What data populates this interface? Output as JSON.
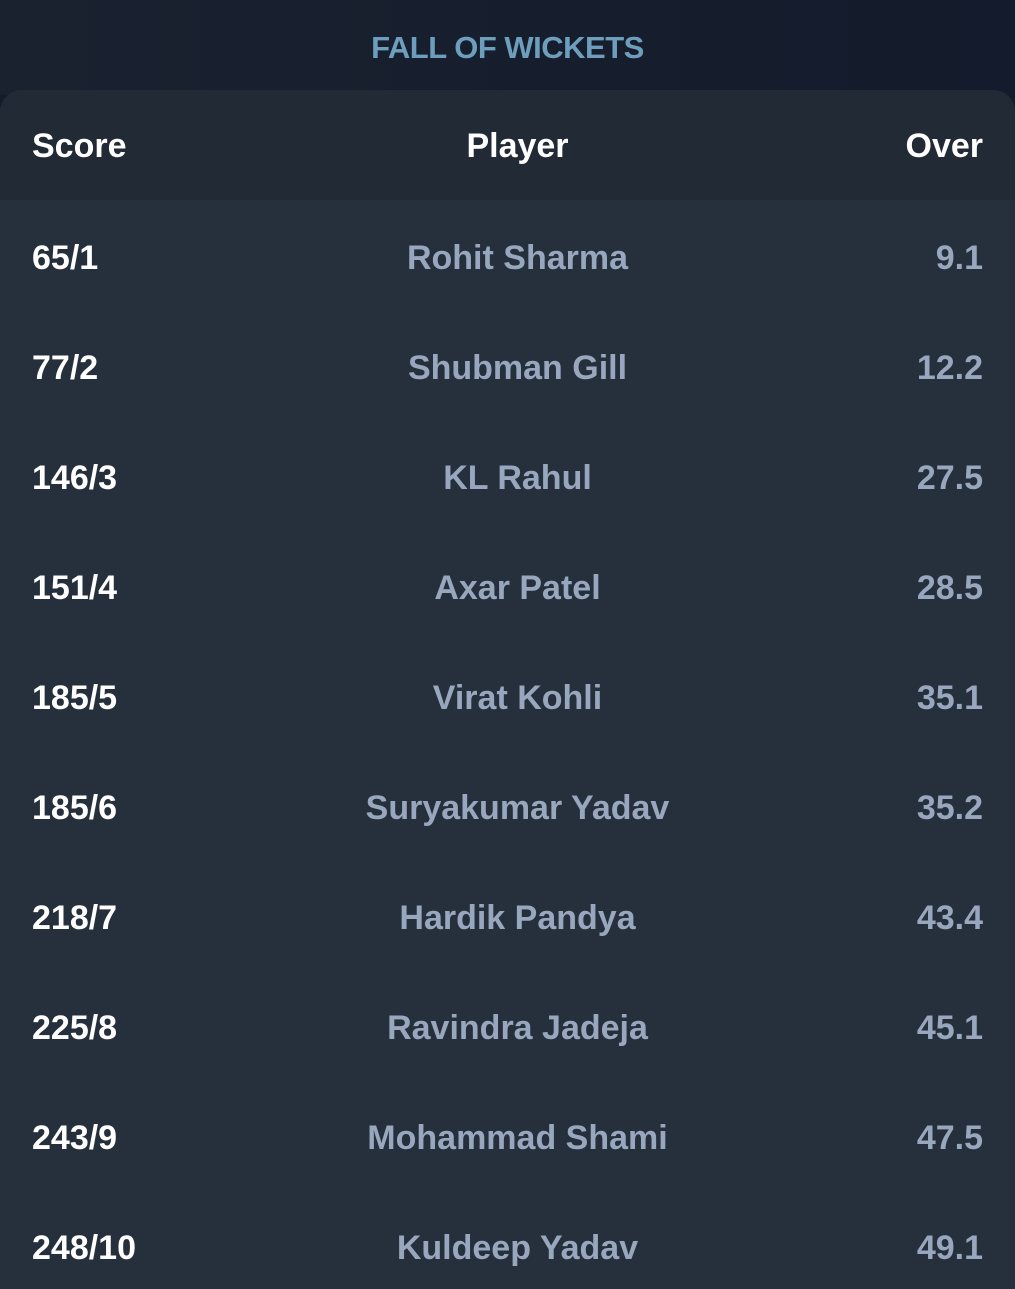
{
  "header": {
    "title": "FALL OF WICKETS"
  },
  "table": {
    "columns": {
      "score": "Score",
      "player": "Player",
      "over": "Over"
    },
    "rows": [
      {
        "score": "65/1",
        "player": "Rohit Sharma",
        "over": "9.1"
      },
      {
        "score": "77/2",
        "player": "Shubman Gill",
        "over": "12.2"
      },
      {
        "score": "146/3",
        "player": "KL Rahul",
        "over": "27.5"
      },
      {
        "score": "151/4",
        "player": "Axar Patel",
        "over": "28.5"
      },
      {
        "score": "185/5",
        "player": "Virat Kohli",
        "over": "35.1"
      },
      {
        "score": "185/6",
        "player": "Suryakumar Yadav",
        "over": "35.2"
      },
      {
        "score": "218/7",
        "player": "Hardik Pandya",
        "over": "43.4"
      },
      {
        "score": "225/8",
        "player": "Ravindra Jadeja",
        "over": "45.1"
      },
      {
        "score": "243/9",
        "player": "Mohammad Shami",
        "over": "47.5"
      },
      {
        "score": "248/10",
        "player": "Kuldeep Yadav",
        "over": "49.1"
      }
    ]
  },
  "colors": {
    "background": "#141b2b",
    "card": "#262f3c",
    "header_row": "#222a36",
    "title": "#6d9fbd",
    "primary_text": "#ffffff",
    "secondary_text": "#98a7bd"
  }
}
